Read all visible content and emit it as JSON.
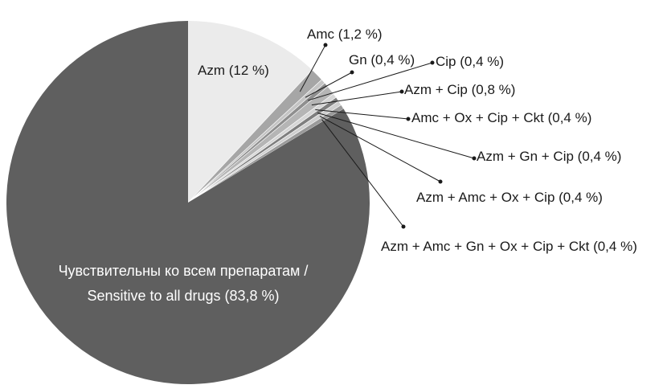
{
  "chart_data": {
    "type": "pie",
    "title": "",
    "slices": [
      {
        "label": "Azm (12 %)",
        "value": 12.0,
        "color": "#ebebeb"
      },
      {
        "label": "Amc (1,2 %)",
        "value": 1.2,
        "color": "#a6a6a6"
      },
      {
        "label": "Gn (0,4 %)",
        "value": 0.4,
        "color": "#c4c4c4"
      },
      {
        "label": "Cip (0,4 %)",
        "value": 0.4,
        "color": "#8f8f8f"
      },
      {
        "label": "Azm + Cip (0,8 %)",
        "value": 0.8,
        "color": "#b5b5b5"
      },
      {
        "label": "Amc + Ox + Cip + Ckt (0,4 %)",
        "value": 0.4,
        "color": "#d6d6d6"
      },
      {
        "label": "Azm + Gn + Cip (0,4 %)",
        "value": 0.4,
        "color": "#7f7f7f"
      },
      {
        "label": "Azm + Amc + Ox + Cip (0,4 %)",
        "value": 0.4,
        "color": "#cfcfcf"
      },
      {
        "label": "Azm + Amc + Gn + Ox + Cip + Ckt (0,4 %)",
        "value": 0.4,
        "color": "#9a9a9a"
      },
      {
        "label_ru": "Чувствительны ко всем препаратам /",
        "label": "Sensitive to all drugs (83,8 %)",
        "value": 83.8,
        "color": "#5f5f5f"
      }
    ]
  }
}
